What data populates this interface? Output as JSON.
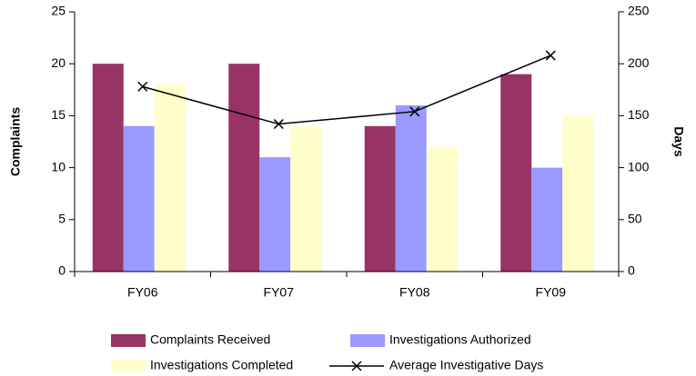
{
  "chart_data": {
    "type": "bar",
    "categories": [
      "FY06",
      "FY07",
      "FY08",
      "FY09"
    ],
    "series": [
      {
        "name": "Complaints Received",
        "color": "#993366",
        "values": [
          20,
          20,
          14,
          19
        ]
      },
      {
        "name": "Investigations Authorized",
        "color": "#9999ff",
        "values": [
          14,
          11,
          16,
          10
        ]
      },
      {
        "name": "Investigations Completed",
        "color": "#ffffcc",
        "values": [
          18,
          14,
          12,
          15
        ]
      },
      {
        "name": "Average Investigative Days",
        "color": "#000000",
        "type": "line",
        "axis": "y2",
        "values": [
          178,
          142,
          154,
          208
        ]
      }
    ],
    "y_label": "Complaints",
    "y2_label": "Days",
    "ylim": [
      0,
      25
    ],
    "yticks": [
      0,
      5,
      10,
      15,
      20,
      25
    ],
    "y2lim": [
      0,
      250
    ],
    "y2ticks": [
      0,
      50,
      100,
      150,
      200,
      250
    ],
    "grid": false,
    "legend": "bottom"
  }
}
